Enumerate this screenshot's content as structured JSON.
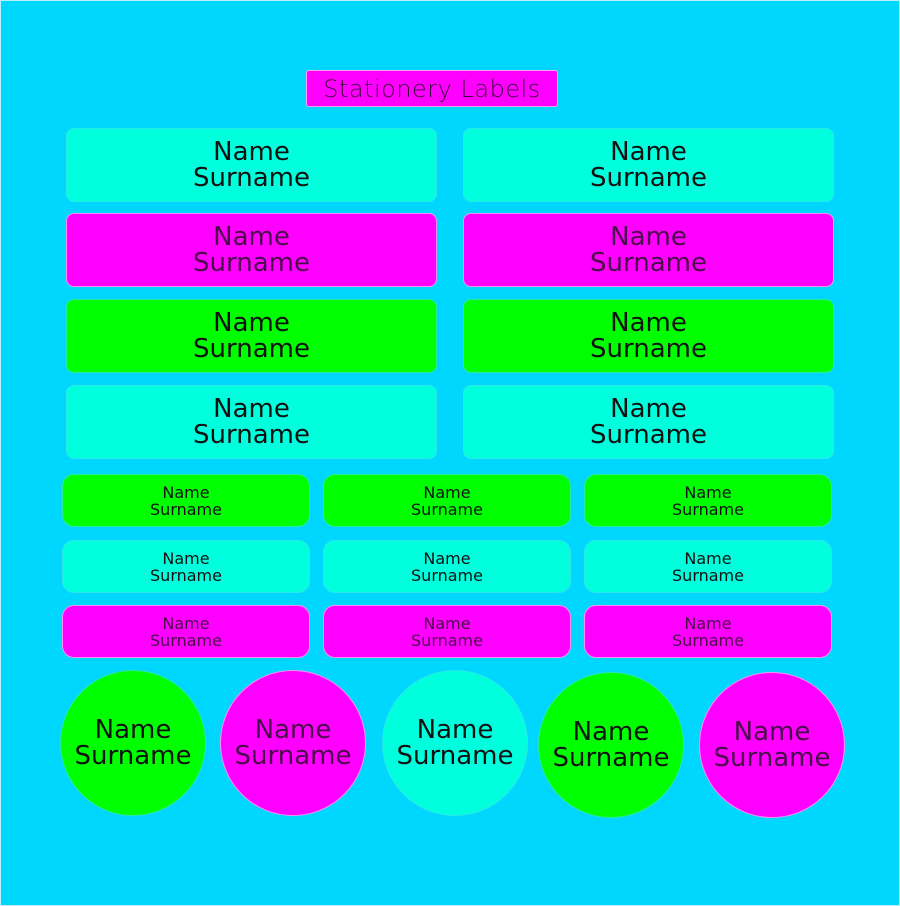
{
  "title": "Stationery Labels",
  "colors": {
    "background": "#00d7ff",
    "aqua": "#00ffdd",
    "magenta": "#ff00ff",
    "green": "#00ff00"
  },
  "large_labels": [
    {
      "name": "Name",
      "surname": "Surname",
      "color": "aqua"
    },
    {
      "name": "Name",
      "surname": "Surname",
      "color": "aqua"
    },
    {
      "name": "Name",
      "surname": "Surname",
      "color": "magenta"
    },
    {
      "name": "Name",
      "surname": "Surname",
      "color": "magenta"
    },
    {
      "name": "Name",
      "surname": "Surname",
      "color": "green"
    },
    {
      "name": "Name",
      "surname": "Surname",
      "color": "green"
    },
    {
      "name": "Name",
      "surname": "Surname",
      "color": "aqua"
    },
    {
      "name": "Name",
      "surname": "Surname",
      "color": "aqua"
    }
  ],
  "medium_labels": [
    {
      "name": "Name",
      "surname": "Surname",
      "color": "green"
    },
    {
      "name": "Name",
      "surname": "Surname",
      "color": "green"
    },
    {
      "name": "Name",
      "surname": "Surname",
      "color": "green"
    },
    {
      "name": "Name",
      "surname": "Surname",
      "color": "aqua"
    },
    {
      "name": "Name",
      "surname": "Surname",
      "color": "aqua"
    },
    {
      "name": "Name",
      "surname": "Surname",
      "color": "aqua"
    },
    {
      "name": "Name",
      "surname": "Surname",
      "color": "magenta"
    },
    {
      "name": "Name",
      "surname": "Surname",
      "color": "magenta"
    },
    {
      "name": "Name",
      "surname": "Surname",
      "color": "magenta"
    }
  ],
  "circle_labels": [
    {
      "name": "Name",
      "surname": "Surname",
      "color": "green"
    },
    {
      "name": "Name",
      "surname": "Surname",
      "color": "magenta"
    },
    {
      "name": "Name",
      "surname": "Surname",
      "color": "aqua"
    },
    {
      "name": "Name",
      "surname": "Surname",
      "color": "green"
    },
    {
      "name": "Name",
      "surname": "Surname",
      "color": "magenta"
    }
  ]
}
